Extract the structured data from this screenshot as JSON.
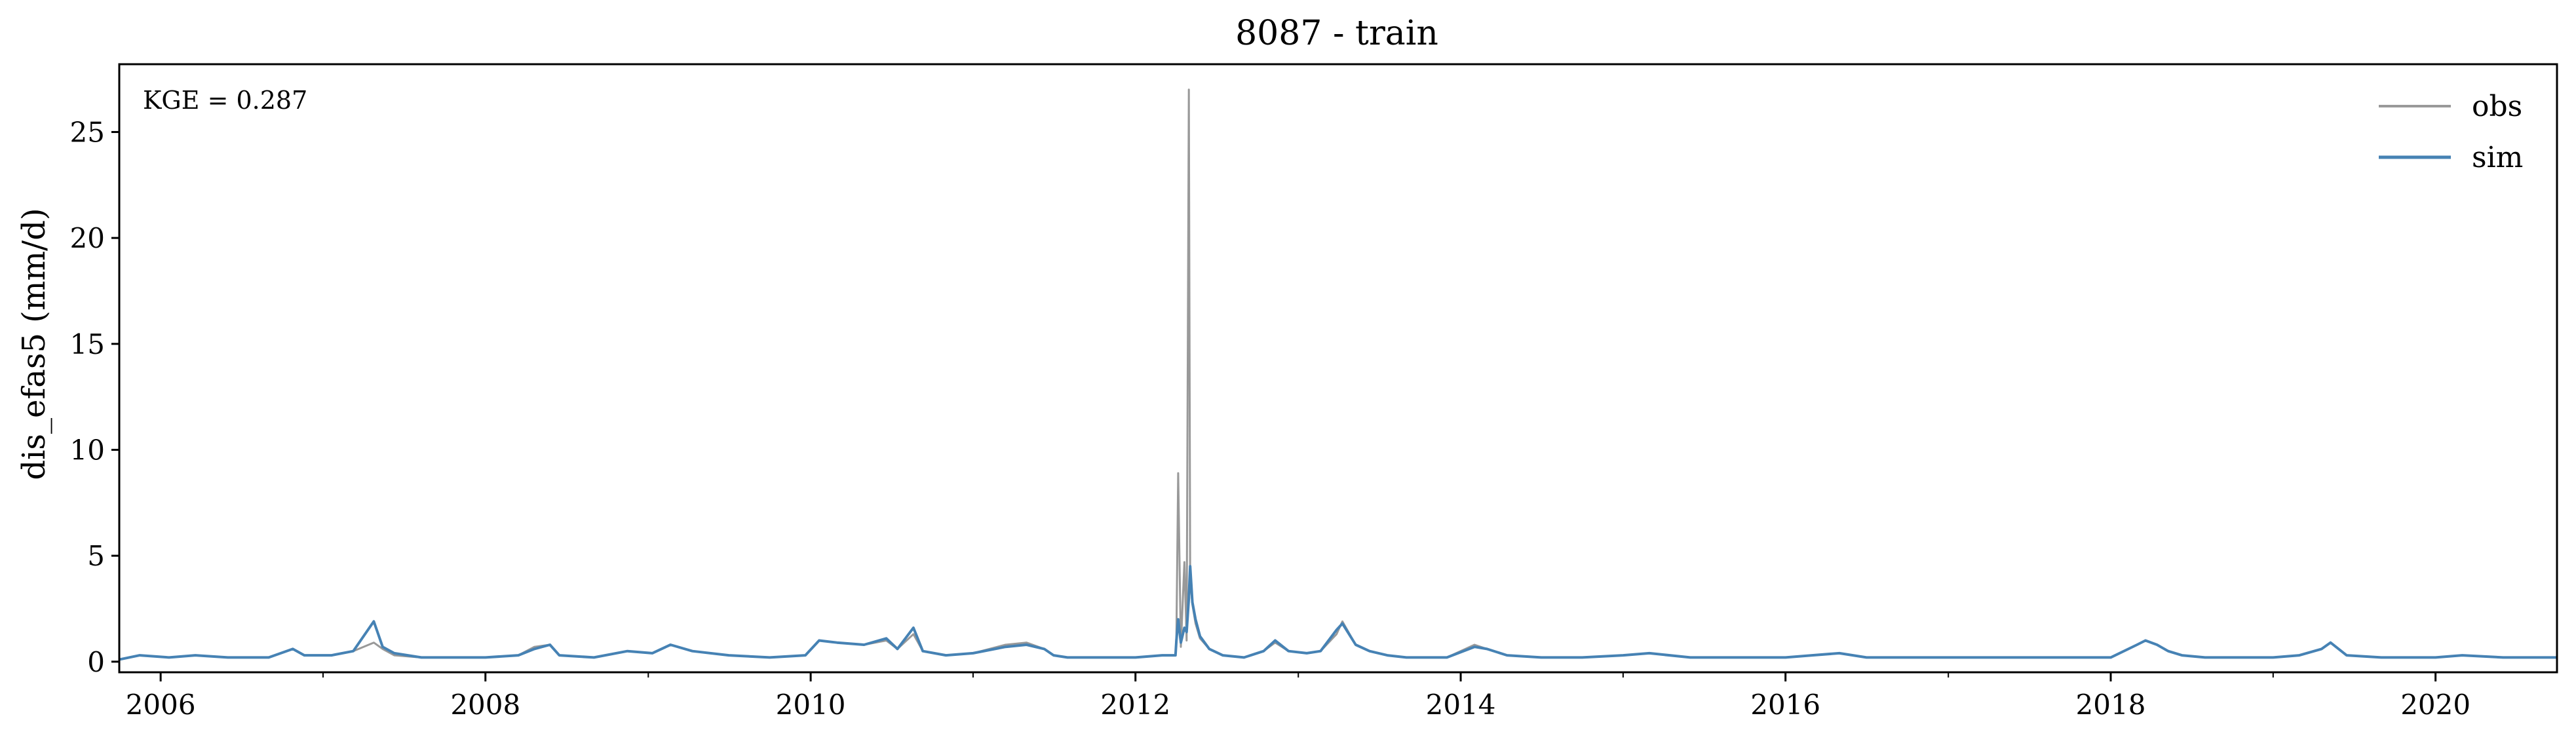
{
  "chart_data": {
    "type": "line",
    "title": "8087 - train",
    "xlabel": "",
    "ylabel": "dis_efas5 (mm/d)",
    "annotation": "KGE = 0.287",
    "xlim": [
      "2005-09-30",
      "2020-09-30"
    ],
    "ylim": [
      -0.5,
      28.2
    ],
    "x_ticks": [
      "2006",
      "2008",
      "2010",
      "2012",
      "2014",
      "2016",
      "2018",
      "2020"
    ],
    "y_ticks": [
      "0",
      "5",
      "10",
      "15",
      "20",
      "25"
    ],
    "grid": false,
    "legend_position": "top-right",
    "series": [
      {
        "name": "obs",
        "color": "#999999",
        "x": [
          "2005-09-30",
          "2005-11-15",
          "2006-01-20",
          "2006-03-20",
          "2006-06-01",
          "2006-09-01",
          "2006-10-25",
          "2006-11-20",
          "2007-01-20",
          "2007-03-10",
          "2007-04-25",
          "2007-05-15",
          "2007-06-10",
          "2007-08-10",
          "2007-10-15",
          "2008-01-01",
          "2008-03-15",
          "2008-04-20",
          "2008-05-25",
          "2008-06-15",
          "2008-09-01",
          "2008-11-15",
          "2009-01-10",
          "2009-02-20",
          "2009-04-10",
          "2009-07-01",
          "2009-10-01",
          "2009-12-20",
          "2010-01-20",
          "2010-03-01",
          "2010-05-01",
          "2010-06-20",
          "2010-07-15",
          "2010-08-20",
          "2010-09-10",
          "2010-11-01",
          "2011-01-01",
          "2011-03-15",
          "2011-05-01",
          "2011-06-10",
          "2011-07-01",
          "2011-08-01",
          "2011-10-01",
          "2012-01-01",
          "2012-03-01",
          "2012-03-31",
          "2012-04-02",
          "2012-04-06",
          "2012-04-12",
          "2012-04-20",
          "2012-04-25",
          "2012-04-30",
          "2012-05-03",
          "2012-05-08",
          "2012-05-15",
          "2012-05-25",
          "2012-06-15",
          "2012-07-15",
          "2012-09-01",
          "2012-10-15",
          "2012-11-10",
          "2012-12-10",
          "2013-01-20",
          "2013-02-20",
          "2013-03-28",
          "2013-04-10",
          "2013-05-10",
          "2013-06-10",
          "2013-07-20",
          "2013-09-01",
          "2013-12-01",
          "2014-02-01",
          "2014-03-01",
          "2014-04-15",
          "2014-07-01",
          "2014-10-01",
          "2015-01-01",
          "2015-03-01",
          "2015-06-01",
          "2015-10-01",
          "2016-01-01",
          "2016-03-01",
          "2016-05-01",
          "2016-07-01",
          "2016-10-01",
          "2017-01-01",
          "2017-06-01",
          "2017-10-01",
          "2018-01-01",
          "2018-03-01",
          "2018-03-20",
          "2018-04-15",
          "2018-05-10",
          "2018-06-10",
          "2018-08-01",
          "2018-10-01",
          "2019-01-01",
          "2019-03-01",
          "2019-04-20",
          "2019-05-10",
          "2019-06-15",
          "2019-09-01",
          "2020-01-01",
          "2020-03-01",
          "2020-06-01",
          "2020-09-30"
        ],
        "y": [
          0.1,
          0.3,
          0.2,
          0.3,
          0.2,
          0.2,
          0.6,
          0.3,
          0.3,
          0.5,
          0.9,
          0.6,
          0.3,
          0.2,
          0.2,
          0.2,
          0.3,
          0.7,
          0.8,
          0.3,
          0.2,
          0.5,
          0.4,
          0.8,
          0.5,
          0.3,
          0.2,
          0.3,
          1.0,
          0.9,
          0.8,
          1.0,
          0.6,
          1.3,
          0.5,
          0.3,
          0.4,
          0.8,
          0.9,
          0.6,
          0.3,
          0.2,
          0.2,
          0.2,
          0.3,
          0.3,
          1.2,
          8.9,
          0.7,
          4.7,
          1.0,
          27.0,
          4.0,
          2.7,
          1.8,
          1.1,
          0.6,
          0.3,
          0.2,
          0.5,
          0.9,
          0.5,
          0.4,
          0.5,
          1.3,
          1.9,
          0.8,
          0.5,
          0.3,
          0.2,
          0.2,
          0.8,
          0.6,
          0.3,
          0.2,
          0.2,
          0.3,
          0.4,
          0.2,
          0.2,
          0.2,
          0.3,
          0.4,
          0.2,
          0.2,
          0.2,
          0.2,
          0.2,
          0.2,
          0.8,
          1.0,
          0.8,
          0.5,
          0.3,
          0.2,
          0.2,
          0.2,
          0.3,
          0.6,
          0.9,
          0.3,
          0.2,
          0.2,
          0.3,
          0.2,
          0.2
        ]
      },
      {
        "name": "sim",
        "color": "#4682b4",
        "x": [
          "2005-09-30",
          "2005-11-15",
          "2006-01-20",
          "2006-03-20",
          "2006-06-01",
          "2006-09-01",
          "2006-10-25",
          "2006-11-20",
          "2007-01-20",
          "2007-03-10",
          "2007-04-25",
          "2007-05-15",
          "2007-06-10",
          "2007-08-10",
          "2007-10-15",
          "2008-01-01",
          "2008-03-15",
          "2008-04-20",
          "2008-05-25",
          "2008-06-15",
          "2008-09-01",
          "2008-11-15",
          "2009-01-10",
          "2009-02-20",
          "2009-04-10",
          "2009-07-01",
          "2009-10-01",
          "2009-12-20",
          "2010-01-20",
          "2010-03-01",
          "2010-05-01",
          "2010-06-20",
          "2010-07-15",
          "2010-08-20",
          "2010-09-10",
          "2010-11-01",
          "2011-01-01",
          "2011-03-15",
          "2011-05-01",
          "2011-06-10",
          "2011-07-01",
          "2011-08-01",
          "2011-10-01",
          "2012-01-01",
          "2012-03-01",
          "2012-03-31",
          "2012-04-02",
          "2012-04-06",
          "2012-04-12",
          "2012-04-20",
          "2012-04-25",
          "2012-04-30",
          "2012-05-03",
          "2012-05-08",
          "2012-05-15",
          "2012-05-25",
          "2012-06-15",
          "2012-07-15",
          "2012-09-01",
          "2012-10-15",
          "2012-11-10",
          "2012-12-10",
          "2013-01-20",
          "2013-02-20",
          "2013-03-28",
          "2013-04-10",
          "2013-05-10",
          "2013-06-10",
          "2013-07-20",
          "2013-09-01",
          "2013-12-01",
          "2014-02-01",
          "2014-03-01",
          "2014-04-15",
          "2014-07-01",
          "2014-10-01",
          "2015-01-01",
          "2015-03-01",
          "2015-06-01",
          "2015-10-01",
          "2016-01-01",
          "2016-03-01",
          "2016-05-01",
          "2016-07-01",
          "2016-10-01",
          "2017-01-01",
          "2017-06-01",
          "2017-10-01",
          "2018-01-01",
          "2018-03-01",
          "2018-03-20",
          "2018-04-15",
          "2018-05-10",
          "2018-06-10",
          "2018-08-01",
          "2018-10-01",
          "2019-01-01",
          "2019-03-01",
          "2019-04-20",
          "2019-05-10",
          "2019-06-15",
          "2019-09-01",
          "2020-01-01",
          "2020-03-01",
          "2020-06-01",
          "2020-09-30"
        ],
        "y": [
          0.1,
          0.3,
          0.2,
          0.3,
          0.2,
          0.2,
          0.6,
          0.3,
          0.3,
          0.5,
          1.9,
          0.7,
          0.4,
          0.2,
          0.2,
          0.2,
          0.3,
          0.6,
          0.8,
          0.3,
          0.2,
          0.5,
          0.4,
          0.8,
          0.5,
          0.3,
          0.2,
          0.3,
          1.0,
          0.9,
          0.8,
          1.1,
          0.6,
          1.6,
          0.5,
          0.3,
          0.4,
          0.7,
          0.8,
          0.6,
          0.3,
          0.2,
          0.2,
          0.2,
          0.3,
          0.3,
          1.0,
          2.0,
          0.9,
          1.6,
          1.4,
          3.0,
          4.5,
          2.8,
          2.0,
          1.2,
          0.6,
          0.3,
          0.2,
          0.5,
          1.0,
          0.5,
          0.4,
          0.5,
          1.5,
          1.8,
          0.8,
          0.5,
          0.3,
          0.2,
          0.2,
          0.7,
          0.6,
          0.3,
          0.2,
          0.2,
          0.3,
          0.4,
          0.2,
          0.2,
          0.2,
          0.3,
          0.4,
          0.2,
          0.2,
          0.2,
          0.2,
          0.2,
          0.2,
          0.8,
          1.0,
          0.8,
          0.5,
          0.3,
          0.2,
          0.2,
          0.2,
          0.3,
          0.6,
          0.9,
          0.3,
          0.2,
          0.2,
          0.3,
          0.2,
          0.2
        ]
      }
    ]
  }
}
